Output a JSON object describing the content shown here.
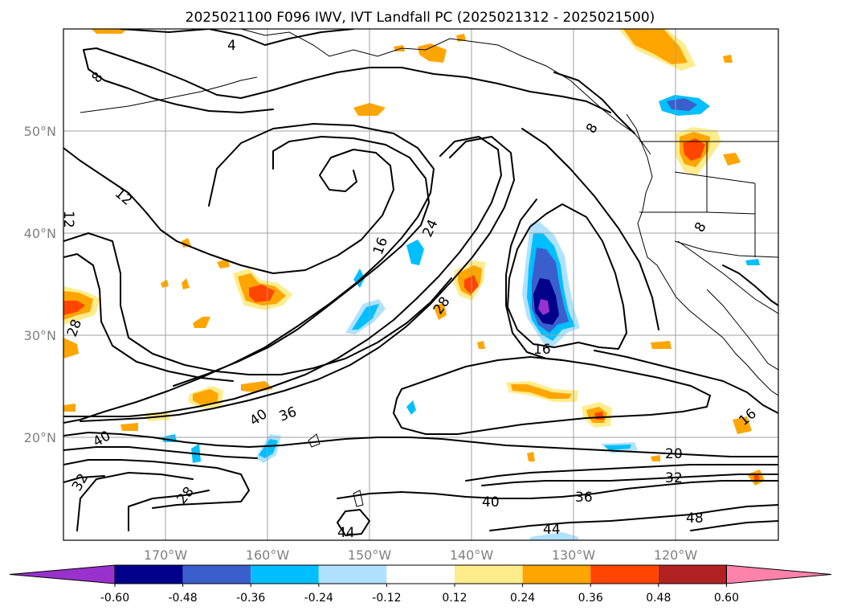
{
  "title": "2025021100 F096 IWV, IVT Landfall PC (2025021312 - 2025021500)",
  "map": {
    "lon_ticks": [
      "170°W",
      "160°W",
      "150°W",
      "140°W",
      "130°W",
      "120°W"
    ],
    "lat_ticks": [
      "50°N",
      "40°N",
      "30°N",
      "20°N"
    ],
    "grid": true,
    "contour_labels": [
      "4",
      "8",
      "8",
      "8",
      "12",
      "12",
      "16",
      "16",
      "16",
      "20",
      "24",
      "28",
      "28",
      "28",
      "32",
      "32",
      "36",
      "36",
      "40",
      "40",
      "40",
      "44",
      "44",
      "48"
    ]
  },
  "colorbar": {
    "ticks": [
      "-0.60",
      "-0.48",
      "-0.36",
      "-0.24",
      "-0.12",
      "0.12",
      "0.24",
      "0.36",
      "0.48",
      "0.60"
    ],
    "colors": [
      "#9932cc",
      "#00008b",
      "#3a5fcd",
      "#00bfff",
      "#b0e2ff",
      "#ffffff",
      "#ffec8b",
      "#ffa500",
      "#ff4500",
      "#b22222",
      "#ff82ab"
    ],
    "extend": "both"
  }
}
